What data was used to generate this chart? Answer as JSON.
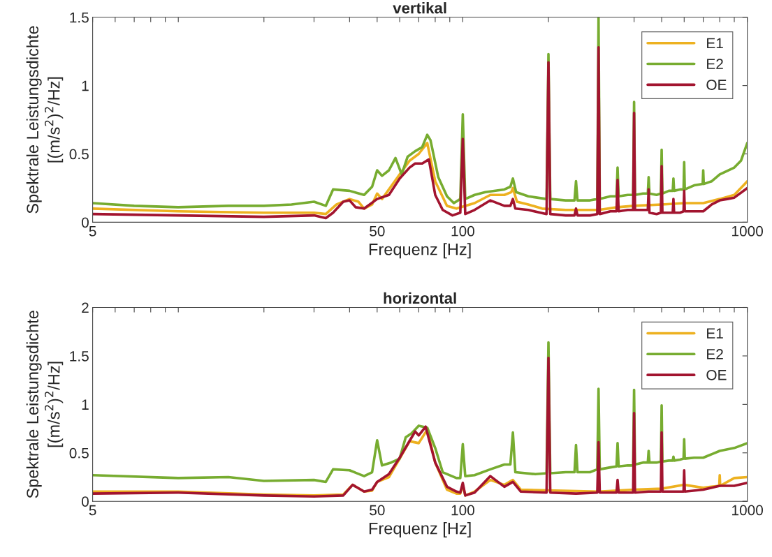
{
  "chart_data": [
    {
      "type": "line",
      "title": "vertikal",
      "xlabel": "Frequenz [Hz]",
      "ylabel": "Spektrale Leistungsdichte\n[(m/s$^{2}$)$^{2}$/Hz]",
      "log": "x",
      "grid": false,
      "legend": "top right",
      "line_style": "solid",
      "marker": "none",
      "xlim": [
        5,
        1000
      ],
      "xticks": [
        5,
        {
          "value": 6,
          "label": null
        },
        {
          "value": 7,
          "label": null
        },
        {
          "value": 8,
          "label": null
        },
        {
          "value": 9,
          "label": null
        },
        {
          "value": 10,
          "label": null
        },
        {
          "value": 20,
          "label": null
        },
        {
          "value": 30,
          "label": null
        },
        {
          "value": 40,
          "label": null
        },
        50,
        {
          "value": 60,
          "label": null
        },
        {
          "value": 70,
          "label": null
        },
        {
          "value": 80,
          "label": null
        },
        {
          "value": 90,
          "label": null
        },
        100,
        {
          "value": 200,
          "label": null
        },
        {
          "value": 300,
          "label": null
        },
        {
          "value": 400,
          "label": null
        },
        {
          "value": 500,
          "label": null
        },
        {
          "value": 600,
          "label": null
        },
        {
          "value": 700,
          "label": null
        },
        {
          "value": 800,
          "label": null
        },
        {
          "value": 900,
          "label": null
        },
        1000
      ],
      "ylim": [
        0,
        1.5
      ],
      "yticks": [
        0,
        0.5,
        1,
        1.5
      ],
      "series": [
        {
          "name": "E1",
          "color": "#edb120",
          "x": [
            5,
            10,
            20,
            30,
            33,
            36,
            40,
            43,
            45,
            48,
            50,
            52,
            55,
            60,
            65,
            70,
            75,
            80,
            88,
            95,
            102,
            110,
            125,
            140,
            148,
            150,
            155,
            170,
            190,
            230,
            300,
            350,
            400,
            500,
            600,
            700,
            800,
            900,
            1000
          ],
          "values": [
            0.1,
            0.08,
            0.07,
            0.07,
            0.06,
            0.13,
            0.17,
            0.15,
            0.1,
            0.13,
            0.21,
            0.17,
            0.24,
            0.35,
            0.45,
            0.5,
            0.58,
            0.3,
            0.12,
            0.1,
            0.12,
            0.14,
            0.2,
            0.2,
            0.22,
            0.25,
            0.15,
            0.13,
            0.1,
            0.09,
            0.09,
            0.11,
            0.12,
            0.13,
            0.14,
            0.14,
            0.17,
            0.2,
            0.3
          ]
        },
        {
          "name": "E2",
          "color": "#77ac30",
          "x": [
            5,
            7,
            10,
            15,
            20,
            25,
            30,
            33,
            35,
            40,
            45,
            48,
            50,
            52,
            55,
            58,
            61,
            64,
            68,
            72,
            75,
            77,
            82,
            88,
            93,
            98,
            100,
            102,
            110,
            120,
            140,
            147,
            150,
            154,
            170,
            197,
            200,
            203,
            230,
            247,
            250,
            253,
            280,
            297,
            300,
            303,
            330,
            347,
            350,
            353,
            380,
            397,
            400,
            403,
            430,
            447,
            450,
            453,
            480,
            497,
            500,
            503,
            530,
            547,
            550,
            553,
            580,
            597,
            600,
            603,
            650,
            697,
            700,
            703,
            750,
            800,
            900,
            950,
            1000
          ],
          "values": [
            0.14,
            0.12,
            0.11,
            0.12,
            0.12,
            0.13,
            0.15,
            0.12,
            0.24,
            0.23,
            0.2,
            0.26,
            0.38,
            0.34,
            0.38,
            0.47,
            0.35,
            0.48,
            0.52,
            0.55,
            0.64,
            0.6,
            0.33,
            0.19,
            0.14,
            0.17,
            0.79,
            0.17,
            0.2,
            0.22,
            0.24,
            0.26,
            0.32,
            0.22,
            0.19,
            0.17,
            1.23,
            0.17,
            0.16,
            0.16,
            0.3,
            0.16,
            0.16,
            0.17,
            1.5,
            0.17,
            0.19,
            0.19,
            0.4,
            0.19,
            0.2,
            0.2,
            0.88,
            0.2,
            0.21,
            0.21,
            0.33,
            0.21,
            0.2,
            0.21,
            0.53,
            0.21,
            0.23,
            0.23,
            0.32,
            0.23,
            0.24,
            0.24,
            0.44,
            0.24,
            0.27,
            0.28,
            0.38,
            0.28,
            0.3,
            0.35,
            0.4,
            0.45,
            0.58
          ]
        },
        {
          "name": "OE",
          "color": "#a2142f",
          "x": [
            5,
            10,
            20,
            30,
            33,
            35,
            38,
            40,
            42,
            45,
            50,
            55,
            60,
            65,
            68,
            72,
            76,
            80,
            85,
            92,
            98,
            100,
            102,
            110,
            125,
            140,
            147,
            150,
            153,
            170,
            197,
            200,
            203,
            230,
            247,
            250,
            253,
            280,
            297,
            300,
            303,
            330,
            347,
            350,
            353,
            380,
            397,
            400,
            403,
            430,
            447,
            450,
            453,
            480,
            497,
            500,
            503,
            530,
            547,
            550,
            553,
            580,
            597,
            600,
            603,
            700,
            750,
            800,
            850,
            900,
            1000
          ],
          "values": [
            0.06,
            0.05,
            0.04,
            0.05,
            0.03,
            0.07,
            0.15,
            0.16,
            0.11,
            0.1,
            0.17,
            0.2,
            0.32,
            0.4,
            0.43,
            0.43,
            0.46,
            0.2,
            0.09,
            0.05,
            0.07,
            0.61,
            0.06,
            0.09,
            0.16,
            0.12,
            0.12,
            0.17,
            0.1,
            0.09,
            0.06,
            1.17,
            0.06,
            0.05,
            0.05,
            0.1,
            0.05,
            0.05,
            0.06,
            1.28,
            0.06,
            0.08,
            0.08,
            0.31,
            0.08,
            0.09,
            0.09,
            0.8,
            0.09,
            0.09,
            0.09,
            0.24,
            0.07,
            0.06,
            0.07,
            0.41,
            0.07,
            0.07,
            0.07,
            0.17,
            0.07,
            0.07,
            0.08,
            0.23,
            0.08,
            0.08,
            0.13,
            0.16,
            0.17,
            0.18,
            0.25
          ]
        }
      ]
    },
    {
      "type": "line",
      "title": "horizontal",
      "xlabel": "Frequenz [Hz]",
      "ylabel": "Spektrale Leistungsdichte\n[(m/s$^{2}$)$^{2}$/Hz]",
      "log": "x",
      "grid": false,
      "legend": "top right",
      "line_style": "solid",
      "marker": "none",
      "xlim": [
        5,
        1000
      ],
      "xticks": [
        5,
        {
          "value": 6,
          "label": null
        },
        {
          "value": 7,
          "label": null
        },
        {
          "value": 8,
          "label": null
        },
        {
          "value": 9,
          "label": null
        },
        {
          "value": 10,
          "label": null
        },
        {
          "value": 20,
          "label": null
        },
        {
          "value": 30,
          "label": null
        },
        {
          "value": 40,
          "label": null
        },
        50,
        {
          "value": 60,
          "label": null
        },
        {
          "value": 70,
          "label": null
        },
        {
          "value": 80,
          "label": null
        },
        {
          "value": 90,
          "label": null
        },
        100,
        {
          "value": 200,
          "label": null
        },
        {
          "value": 300,
          "label": null
        },
        {
          "value": 400,
          "label": null
        },
        {
          "value": 500,
          "label": null
        },
        {
          "value": 600,
          "label": null
        },
        {
          "value": 700,
          "label": null
        },
        {
          "value": 800,
          "label": null
        },
        {
          "value": 900,
          "label": null
        },
        1000
      ],
      "ylim": [
        0,
        2
      ],
      "yticks": [
        0,
        0.5,
        1,
        1.5,
        2
      ],
      "series": [
        {
          "name": "E1",
          "color": "#edb120",
          "x": [
            5,
            10,
            20,
            30,
            38,
            41,
            45,
            48,
            50,
            55,
            60,
            65,
            70,
            75,
            80,
            88,
            95,
            98,
            100,
            102,
            110,
            125,
            140,
            150,
            160,
            300,
            400,
            500,
            600,
            700,
            797,
            800,
            803,
            900,
            1000
          ],
          "values": [
            0.1,
            0.1,
            0.07,
            0.06,
            0.07,
            0.17,
            0.1,
            0.11,
            0.2,
            0.25,
            0.44,
            0.62,
            0.6,
            0.74,
            0.4,
            0.12,
            0.08,
            0.08,
            0.17,
            0.06,
            0.1,
            0.22,
            0.17,
            0.22,
            0.12,
            0.1,
            0.12,
            0.13,
            0.17,
            0.14,
            0.16,
            0.27,
            0.16,
            0.24,
            0.25
          ]
        },
        {
          "name": "E2",
          "color": "#77ac30",
          "x": [
            5,
            10,
            15,
            20,
            30,
            33,
            35,
            40,
            45,
            48,
            50,
            52,
            56,
            60,
            63,
            66,
            70,
            75,
            80,
            85,
            95,
            98,
            100,
            102,
            110,
            125,
            140,
            147,
            150,
            153,
            180,
            197,
            200,
            203,
            230,
            247,
            250,
            253,
            280,
            297,
            300,
            303,
            330,
            347,
            350,
            353,
            380,
            397,
            400,
            403,
            430,
            447,
            450,
            453,
            480,
            497,
            500,
            503,
            530,
            547,
            550,
            553,
            580,
            597,
            600,
            603,
            650,
            700,
            800,
            900,
            1000
          ],
          "values": [
            0.27,
            0.24,
            0.25,
            0.21,
            0.22,
            0.2,
            0.33,
            0.32,
            0.26,
            0.3,
            0.63,
            0.37,
            0.4,
            0.44,
            0.66,
            0.7,
            0.78,
            0.76,
            0.55,
            0.3,
            0.24,
            0.24,
            0.59,
            0.26,
            0.27,
            0.33,
            0.38,
            0.38,
            0.71,
            0.3,
            0.28,
            0.29,
            1.64,
            0.29,
            0.3,
            0.3,
            0.58,
            0.3,
            0.3,
            0.33,
            1.16,
            0.33,
            0.35,
            0.36,
            0.6,
            0.36,
            0.37,
            0.37,
            1.15,
            0.38,
            0.4,
            0.4,
            0.52,
            0.4,
            0.4,
            0.41,
            0.99,
            0.41,
            0.42,
            0.42,
            0.46,
            0.42,
            0.43,
            0.44,
            0.64,
            0.44,
            0.45,
            0.45,
            0.52,
            0.55,
            0.6
          ]
        },
        {
          "name": "OE",
          "color": "#a2142f",
          "x": [
            5,
            10,
            20,
            30,
            38,
            41,
            45,
            48,
            50,
            55,
            60,
            68,
            70,
            74,
            80,
            88,
            95,
            98,
            100,
            102,
            110,
            125,
            140,
            150,
            160,
            197,
            200,
            203,
            250,
            297,
            300,
            303,
            347,
            350,
            353,
            397,
            400,
            403,
            450,
            497,
            500,
            503,
            597,
            600,
            603,
            700,
            800,
            900,
            1000
          ],
          "values": [
            0.08,
            0.09,
            0.06,
            0.05,
            0.06,
            0.17,
            0.1,
            0.12,
            0.2,
            0.28,
            0.45,
            0.72,
            0.68,
            0.77,
            0.4,
            0.15,
            0.1,
            0.09,
            0.19,
            0.06,
            0.09,
            0.26,
            0.15,
            0.2,
            0.1,
            0.09,
            1.48,
            0.09,
            0.08,
            0.09,
            0.61,
            0.09,
            0.09,
            0.22,
            0.09,
            0.09,
            0.91,
            0.09,
            0.1,
            0.1,
            0.71,
            0.1,
            0.1,
            0.32,
            0.1,
            0.12,
            0.16,
            0.16,
            0.19
          ]
        }
      ]
    }
  ]
}
